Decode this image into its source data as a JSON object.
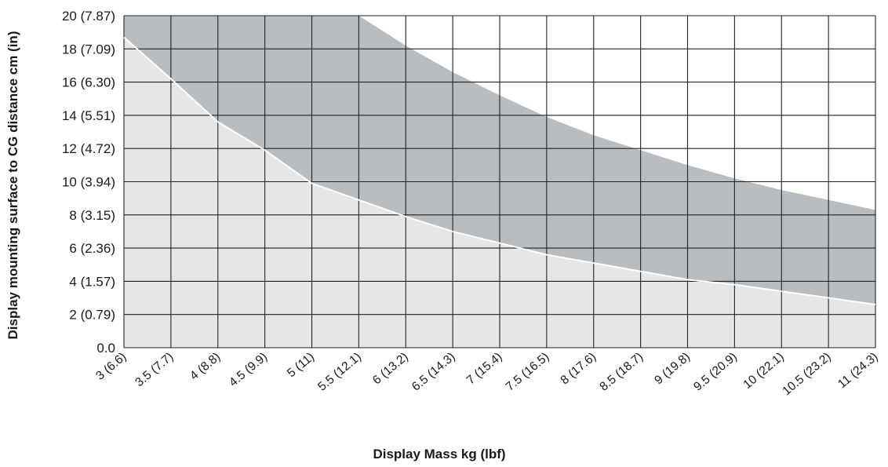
{
  "chart_data": {
    "type": "area",
    "title": "",
    "xlabel": "Display Mass kg (lbf)",
    "ylabel": "Display mounting surface to CG distance cm (in)",
    "x_tick_labels": [
      "3 (6.6)",
      "3.5 (7.7)",
      "4 (8.8)",
      "4.5 (9.9)",
      "5 (11)",
      "5.5 (12.1)",
      "6 (13.2)",
      "6.5 (14.3)",
      "7 (15.4)",
      "7.5 (16.5)",
      "8 (17.6)",
      "8.5 (18.7)",
      "9 (19.8)",
      "9.5 (20.9)",
      "10 (22.1)",
      "10.5 (23.2)",
      "11 (24.3)"
    ],
    "y_tick_labels": [
      "0.0",
      "2 (0.79)",
      "4 (1.57)",
      "6 (2.36)",
      "8 (3.15)",
      "10 (3.94)",
      "12 (4.72)",
      "14 (5.51)",
      "16 (6.30)",
      "18 (7.09)",
      "20 (7.87)"
    ],
    "xlim": [
      3,
      11
    ],
    "ylim": [
      0,
      20
    ],
    "grid": true,
    "series": [
      {
        "role": "lower-region",
        "color": "#e6e6e6",
        "x": [
          3,
          3.5,
          4,
          4.5,
          5,
          5.5,
          6,
          6.5,
          7,
          7.5,
          8,
          8.5,
          9,
          9.5,
          10,
          10.5,
          11
        ],
        "values": [
          18.7,
          16.2,
          13.6,
          11.9,
          9.9,
          8.9,
          7.9,
          7.0,
          6.3,
          5.6,
          5.1,
          4.6,
          4.1,
          3.8,
          3.4,
          3.0,
          2.6
        ]
      },
      {
        "role": "upper-region",
        "color": "#b9bdc0",
        "x": [
          3,
          3.5,
          4,
          4.5,
          5,
          5.5,
          6,
          6.5,
          7,
          7.5,
          8,
          8.5,
          9,
          9.5,
          10,
          10.5,
          11
        ],
        "values": [
          20,
          20,
          20,
          20,
          20,
          20,
          18.2,
          16.6,
          15.2,
          13.9,
          12.8,
          11.9,
          11.0,
          10.2,
          9.5,
          8.9,
          8.3
        ]
      }
    ]
  }
}
